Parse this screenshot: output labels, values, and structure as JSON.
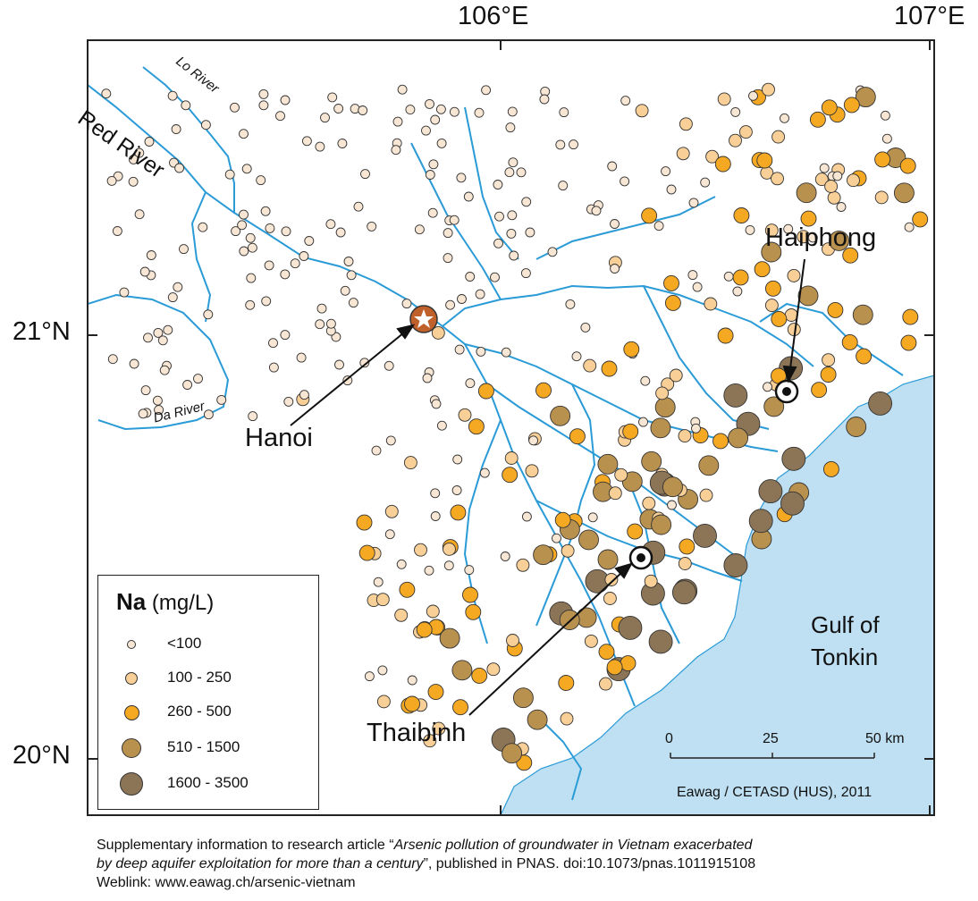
{
  "longitude_labels": [
    "106°E",
    "107°E"
  ],
  "latitude_labels": [
    "21°N",
    "20°N"
  ],
  "rivers": {
    "red": "Red River",
    "lo": "Lo River",
    "da": "Da River"
  },
  "cities": {
    "hanoi": "Hanoi",
    "haiphong": "Haiphong",
    "thaibinh": "Thaibinh"
  },
  "sea_label_line1": "Gulf of",
  "sea_label_line2": "Tonkin",
  "legend": {
    "element": "Na",
    "unit": "(mg/L)",
    "classes": [
      {
        "label": "<100",
        "color": "#f8e6d4",
        "size": 10
      },
      {
        "label": "100 - 250",
        "color": "#f7cf97",
        "size": 14
      },
      {
        "label": "260 - 500",
        "color": "#f5a923",
        "size": 17
      },
      {
        "label": "510 - 1500",
        "color": "#b9914f",
        "size": 22
      },
      {
        "label": "1600 - 3500",
        "color": "#8c7556",
        "size": 26
      }
    ]
  },
  "scale_bar": {
    "ticks": [
      "0",
      "25",
      "50 km"
    ]
  },
  "credit": "Eawag / CETASD (HUS), 2011",
  "caption": {
    "line1_prefix": "Supplementary information to research article “",
    "line1_italic": "Arsenic pollution of groundwater in Vietnam exacerbated",
    "line2_italic": "by deep aquifer exploitation for more than a century",
    "line2_suffix": "”, published in PNAS. doi:10.1073/pnas.1011915108",
    "line3": "Weblink: www.eawag.ch/arsenic-vietnam"
  },
  "colors": {
    "sea": "#bfe0f2",
    "river": "#2a9bd7",
    "frame": "#222222",
    "hanoi_marker": "#c0612b"
  }
}
